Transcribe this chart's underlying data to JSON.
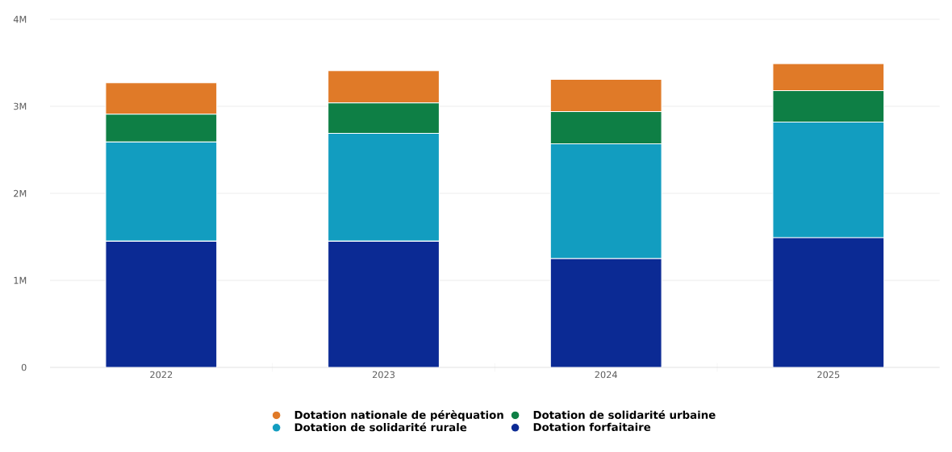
{
  "chart_data": {
    "type": "bar",
    "stacked": true,
    "categories": [
      "2022",
      "2023",
      "2024",
      "2025"
    ],
    "series": [
      {
        "name": "Dotation forfaitaire",
        "color": "#0b2a94",
        "values": [
          1450000,
          1450000,
          1250000,
          1490000
        ]
      },
      {
        "name": "Dotation de solidarité rurale",
        "color": "#129dc0",
        "values": [
          1140000,
          1240000,
          1320000,
          1330000
        ]
      },
      {
        "name": "Dotation de solidarité urbaine",
        "color": "#0e7f45",
        "values": [
          320000,
          350000,
          370000,
          360000
        ]
      },
      {
        "name": "Dotation nationale de pérèquation",
        "color": "#e07a28",
        "values": [
          360000,
          370000,
          370000,
          310000
        ]
      }
    ],
    "ylim": [
      0,
      4000000
    ],
    "yticks": [
      0,
      {
        "value": 1000000,
        "label": "1M"
      },
      {
        "value": 2000000,
        "label": "2M"
      },
      {
        "value": 3000000,
        "label": "3M"
      },
      {
        "value": 4000000,
        "label": "4M"
      }
    ],
    "grid": "y",
    "legend": "bottom"
  }
}
